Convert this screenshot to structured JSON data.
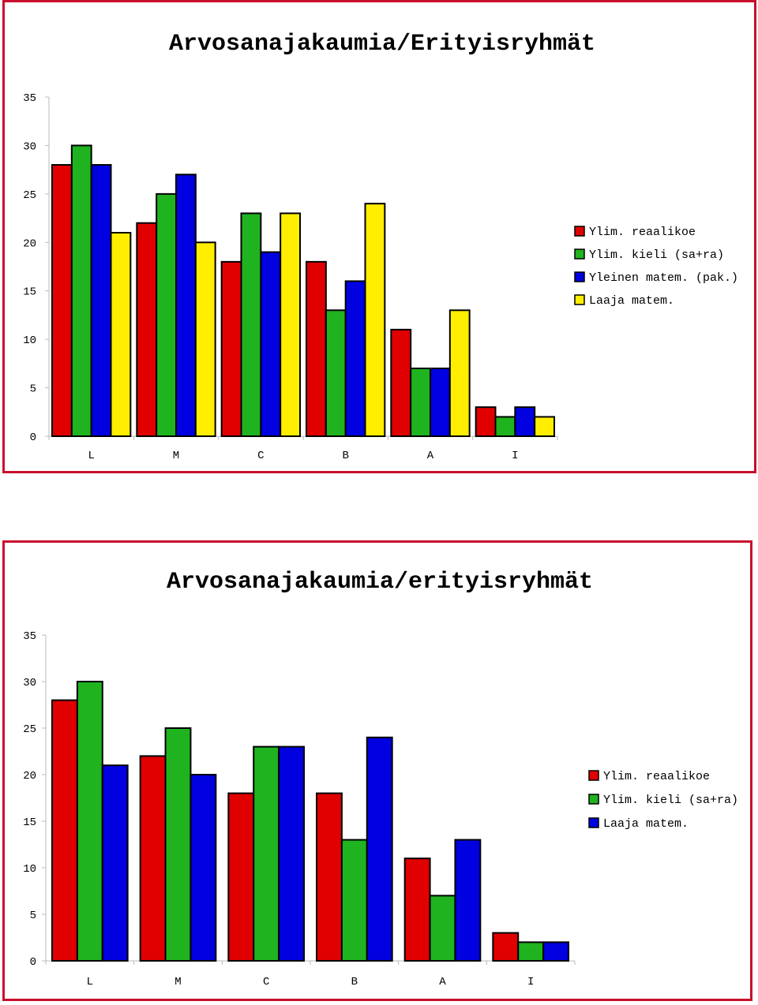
{
  "chart_data": [
    {
      "type": "bar",
      "title": "Arvosanajakaumia/Erityisryhmät",
      "categories": [
        "L",
        "M",
        "C",
        "B",
        "A",
        "I"
      ],
      "yticks": [
        "0",
        "5",
        "10",
        "15",
        "20",
        "25",
        "30",
        "35"
      ],
      "ylim": [
        0,
        35
      ],
      "grid": false,
      "legend_position": "right",
      "series": [
        {
          "name": "Ylim. reaalikoe",
          "color": "#e00000",
          "values": [
            28,
            22,
            18,
            18,
            11,
            3
          ]
        },
        {
          "name": "Ylim. kieli (sa+ra)",
          "color": "#1fb31f",
          "values": [
            30,
            25,
            23,
            13,
            7,
            2
          ]
        },
        {
          "name": "Yleinen matem. (pak.)",
          "color": "#0000e0",
          "values": [
            28,
            27,
            19,
            16,
            7,
            3
          ]
        },
        {
          "name": "Laaja matem.",
          "color": "#ffee00",
          "values": [
            21,
            20,
            23,
            24,
            13,
            2
          ]
        }
      ]
    },
    {
      "type": "bar",
      "title": "Arvosanajakaumia/erityisryhmät",
      "categories": [
        "L",
        "M",
        "C",
        "B",
        "A",
        "I"
      ],
      "yticks": [
        "0",
        "5",
        "10",
        "15",
        "20",
        "25",
        "30",
        "35"
      ],
      "ylim": [
        0,
        35
      ],
      "grid": false,
      "legend_position": "right",
      "series": [
        {
          "name": "Ylim. reaalikoe",
          "color": "#e00000",
          "values": [
            28,
            22,
            18,
            18,
            11,
            3
          ]
        },
        {
          "name": "Ylim. kieli (sa+ra)",
          "color": "#1fb31f",
          "values": [
            30,
            25,
            23,
            13,
            7,
            2
          ]
        },
        {
          "name": "Laaja matem.",
          "color": "#0000e0",
          "values": [
            21,
            20,
            23,
            24,
            13,
            2
          ]
        }
      ]
    }
  ]
}
